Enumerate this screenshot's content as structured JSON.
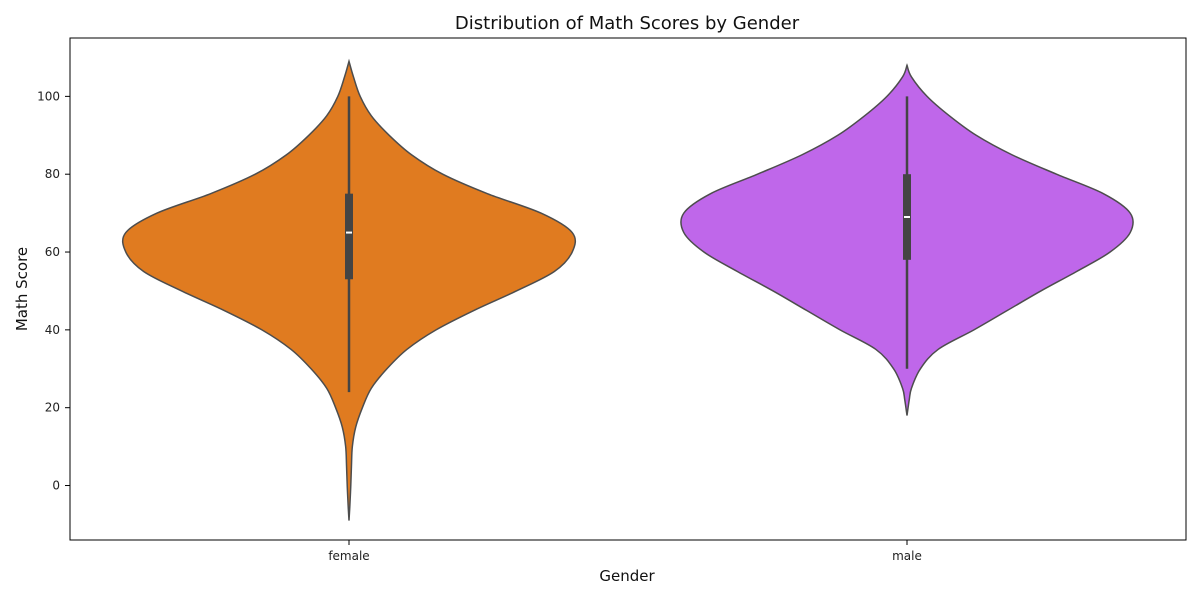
{
  "chart_data": {
    "type": "violin",
    "title": "Distribution of Math Scores by Gender",
    "xlabel": "Gender",
    "ylabel": "Math Score",
    "ylim": [
      -14,
      115
    ],
    "yticks": [
      0,
      20,
      40,
      60,
      80,
      100
    ],
    "grid": false,
    "categories": [
      "female",
      "male"
    ],
    "colors": [
      "#e07b20",
      "#bf67ea"
    ],
    "outline_color": "#4d4d4d",
    "box_color": "#444444",
    "median_color": "#ffffff",
    "series": [
      {
        "category": "female",
        "box": {
          "min": 24,
          "q1": 53,
          "median": 65,
          "q3": 75,
          "max": 100
        },
        "density": [
          [
            -9,
            0.0
          ],
          [
            -5,
            0.004
          ],
          [
            0,
            0.008
          ],
          [
            5,
            0.011
          ],
          [
            10,
            0.015
          ],
          [
            15,
            0.03
          ],
          [
            20,
            0.06
          ],
          [
            25,
            0.1
          ],
          [
            30,
            0.17
          ],
          [
            35,
            0.26
          ],
          [
            40,
            0.39
          ],
          [
            45,
            0.56
          ],
          [
            50,
            0.75
          ],
          [
            55,
            0.92
          ],
          [
            60,
            1.0
          ],
          [
            65,
            1.0
          ],
          [
            70,
            0.86
          ],
          [
            75,
            0.62
          ],
          [
            80,
            0.42
          ],
          [
            85,
            0.28
          ],
          [
            90,
            0.18
          ],
          [
            95,
            0.1
          ],
          [
            100,
            0.05
          ],
          [
            105,
            0.02
          ],
          [
            109,
            0.0
          ]
        ]
      },
      {
        "category": "male",
        "box": {
          "min": 30,
          "q1": 58,
          "median": 69,
          "q3": 80,
          "max": 100
        },
        "density": [
          [
            18,
            0.0
          ],
          [
            22,
            0.01
          ],
          [
            25,
            0.02
          ],
          [
            30,
            0.06
          ],
          [
            35,
            0.14
          ],
          [
            40,
            0.3
          ],
          [
            45,
            0.45
          ],
          [
            50,
            0.6
          ],
          [
            55,
            0.76
          ],
          [
            60,
            0.91
          ],
          [
            65,
            1.0
          ],
          [
            70,
            1.0
          ],
          [
            75,
            0.88
          ],
          [
            80,
            0.67
          ],
          [
            85,
            0.47
          ],
          [
            90,
            0.31
          ],
          [
            95,
            0.19
          ],
          [
            100,
            0.09
          ],
          [
            105,
            0.02
          ],
          [
            108,
            0.0
          ]
        ]
      }
    ]
  }
}
